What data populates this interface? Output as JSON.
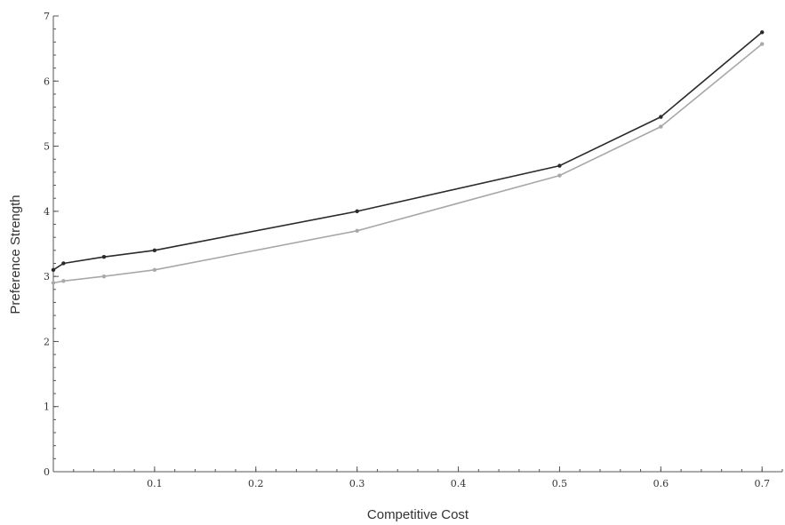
{
  "chart_data": {
    "type": "line",
    "title": "",
    "xlabel": "Competitive Cost",
    "ylabel": "Preference Strength",
    "xlim": [
      0,
      0.72
    ],
    "ylim": [
      0,
      7
    ],
    "x_ticks": [
      "0.1",
      "0.2",
      "0.3",
      "0.4",
      "0.5",
      "0.6",
      "0.7"
    ],
    "y_ticks": [
      "0",
      "1",
      "2",
      "3",
      "4",
      "5",
      "6",
      "7"
    ],
    "grid": false,
    "legend": "none",
    "series": [
      {
        "color": "#2a2a2a",
        "marker": true,
        "points": [
          [
            0,
            3.1
          ],
          [
            0.01,
            3.2
          ],
          [
            0.05,
            3.3
          ],
          [
            0.1,
            3.4
          ],
          [
            0.3,
            4.0
          ],
          [
            0.5,
            4.7
          ],
          [
            0.6,
            5.45
          ],
          [
            0.7,
            6.75
          ]
        ]
      },
      {
        "color": "#a8a8a8",
        "marker": true,
        "points": [
          [
            0,
            2.9
          ],
          [
            0.01,
            2.93
          ],
          [
            0.05,
            3.0
          ],
          [
            0.1,
            3.1
          ],
          [
            0.3,
            3.7
          ],
          [
            0.5,
            4.55
          ],
          [
            0.6,
            5.3
          ],
          [
            0.7,
            6.57
          ]
        ]
      }
    ]
  }
}
